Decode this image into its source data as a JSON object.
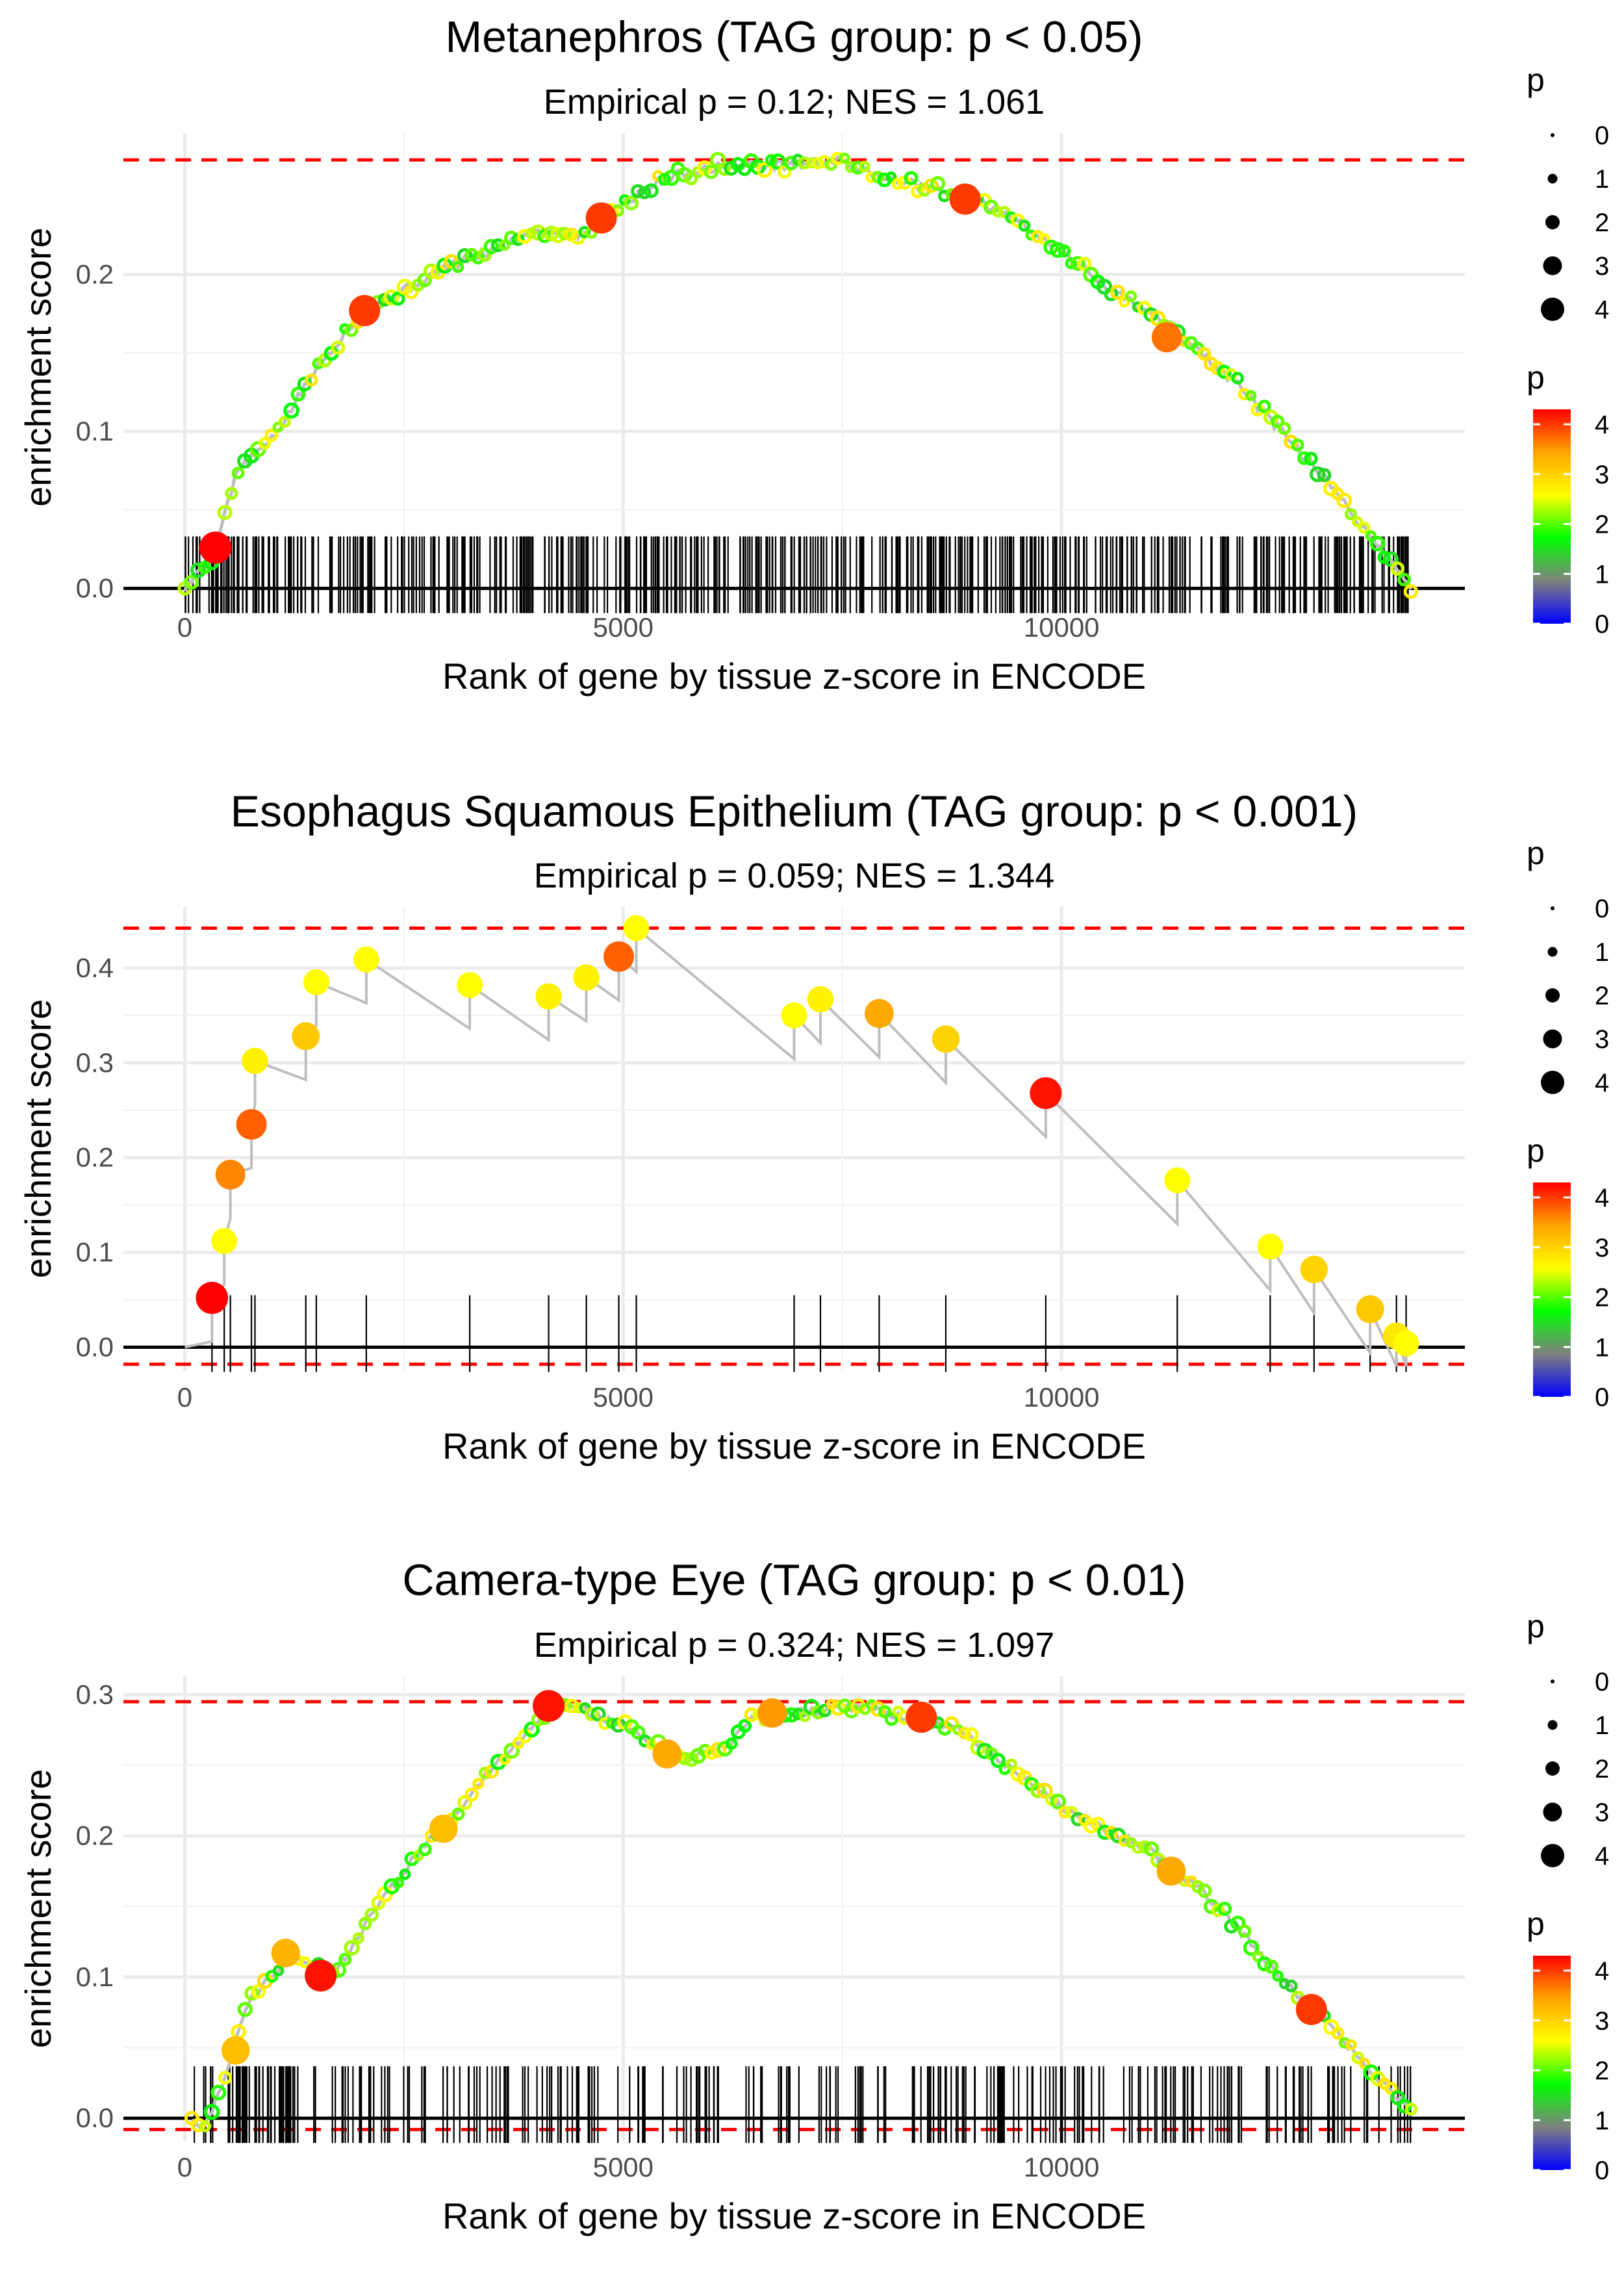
{
  "colors": {
    "gradient": [
      "#0000FF",
      "#808080",
      "#00FF00",
      "#FFFF00",
      "#FFA500",
      "#FF0000"
    ],
    "threshold_line": "#FF0000",
    "grid": "#EBEBEB",
    "axis": "#000000",
    "path_line": "#BEBEBE"
  },
  "legend": {
    "size_title": "p",
    "size_levels": [
      "0",
      "1",
      "2",
      "3",
      "4"
    ],
    "color_title": "p",
    "color_ticks": [
      "0",
      "1",
      "2",
      "3",
      "4"
    ],
    "color_range": [
      0,
      4.3
    ]
  },
  "chart_data": [
    {
      "type": "line",
      "title": "Metanephros (TAG group: p < 0.05)",
      "subtitle": "Empirical p = 0.12; NES = 1.061",
      "xlabel": "Rank of gene by tissue z-score in ENCODE",
      "ylabel": "enrichment score",
      "xlim": [
        -700,
        14600
      ],
      "ylim": [
        -0.008,
        0.29
      ],
      "xticks": [
        0,
        5000,
        10000
      ],
      "xtick_labels": [
        "0",
        "5000",
        "10000"
      ],
      "yticks": [
        0,
        0.1,
        0.2
      ],
      "ytick_labels": [
        "0.0",
        "0.1",
        "0.2"
      ],
      "max_es": 0.273,
      "min_es": 0,
      "rug_hits": 520,
      "rug_seed": 11,
      "rug_range": [
        0,
        14000
      ],
      "curve": [
        [
          0,
          0
        ],
        [
          300,
          0.02
        ],
        [
          600,
          0.075
        ],
        [
          1000,
          0.095
        ],
        [
          1500,
          0.14
        ],
        [
          2000,
          0.175
        ],
        [
          2500,
          0.19
        ],
        [
          3000,
          0.205
        ],
        [
          3500,
          0.215
        ],
        [
          4000,
          0.228
        ],
        [
          4500,
          0.225
        ],
        [
          5000,
          0.245
        ],
        [
          5500,
          0.262
        ],
        [
          6000,
          0.268
        ],
        [
          6500,
          0.27
        ],
        [
          7000,
          0.27
        ],
        [
          7400,
          0.273
        ],
        [
          8000,
          0.262
        ],
        [
          8500,
          0.255
        ],
        [
          9000,
          0.248
        ],
        [
          9500,
          0.235
        ],
        [
          10000,
          0.215
        ],
        [
          10500,
          0.193
        ],
        [
          11000,
          0.175
        ],
        [
          11500,
          0.155
        ],
        [
          12000,
          0.13
        ],
        [
          12500,
          0.1
        ],
        [
          13000,
          0.07
        ],
        [
          13500,
          0.035
        ],
        [
          14000,
          0
        ]
      ],
      "highlight_points": [
        {
          "x": 350,
          "y": 0.026,
          "p": 4.3
        },
        {
          "x": 2050,
          "y": 0.177,
          "p": 4.0
        },
        {
          "x": 4750,
          "y": 0.236,
          "p": 4.0
        },
        {
          "x": 8900,
          "y": 0.248,
          "p": 4.0
        },
        {
          "x": 11200,
          "y": 0.16,
          "p": 3.7
        }
      ],
      "dense_points": true
    },
    {
      "type": "line",
      "title": "Esophagus Squamous Epithelium (TAG group: p < 0.001)",
      "subtitle": "Empirical p = 0.059; NES = 1.344",
      "xlabel": "Rank of gene by tissue z-score in ENCODE",
      "ylabel": "enrichment score",
      "xlim": [
        -700,
        14600
      ],
      "ylim": [
        -0.025,
        0.465
      ],
      "xticks": [
        0,
        5000,
        10000
      ],
      "xtick_labels": [
        "0",
        "5000",
        "10000"
      ],
      "yticks": [
        0,
        0.1,
        0.2,
        0.3,
        0.4
      ],
      "ytick_labels": [
        "0.0",
        "0.1",
        "0.2",
        "0.3",
        "0.4"
      ],
      "max_es": 0.442,
      "min_es": -0.018,
      "rug_positions": [
        310,
        450,
        520,
        760,
        800,
        1380,
        1500,
        2070,
        3250,
        4150,
        4580,
        4950,
        5150,
        6950,
        7250,
        7920,
        8680,
        9820,
        11320,
        12380,
        12880,
        13520,
        13820,
        13930
      ],
      "steps": [
        {
          "x": 310,
          "top": 0.052,
          "p": 4.3
        },
        {
          "x": 450,
          "top": 0.112,
          "p": 2.6
        },
        {
          "x": 520,
          "top": 0.182,
          "p": 3.6
        },
        {
          "x": 760,
          "top": 0.235,
          "p": 3.8
        },
        {
          "x": 800,
          "top": 0.302,
          "p": 2.7
        },
        {
          "x": 1380,
          "top": 0.328,
          "p": 3.1
        },
        {
          "x": 1500,
          "top": 0.385,
          "p": 2.6
        },
        {
          "x": 2070,
          "top": 0.409,
          "p": 2.6
        },
        {
          "x": 3250,
          "top": 0.382,
          "p": 2.6
        },
        {
          "x": 4150,
          "top": 0.37,
          "p": 2.7
        },
        {
          "x": 4580,
          "top": 0.39,
          "p": 2.7
        },
        {
          "x": 4950,
          "top": 0.412,
          "p": 3.8
        },
        {
          "x": 5150,
          "top": 0.442,
          "p": 2.6
        },
        {
          "x": 6950,
          "top": 0.35,
          "p": 2.6
        },
        {
          "x": 7250,
          "top": 0.367,
          "p": 2.7
        },
        {
          "x": 7920,
          "top": 0.352,
          "p": 3.4
        },
        {
          "x": 8680,
          "top": 0.325,
          "p": 3.0
        },
        {
          "x": 9820,
          "top": 0.268,
          "p": 4.2
        },
        {
          "x": 11320,
          "top": 0.176,
          "p": 2.6
        },
        {
          "x": 12380,
          "top": 0.106,
          "p": 2.6
        },
        {
          "x": 12880,
          "top": 0.082,
          "p": 3.0
        },
        {
          "x": 13520,
          "top": 0.04,
          "p": 3.1
        },
        {
          "x": 13820,
          "top": 0.012,
          "p": 2.8
        },
        {
          "x": 13930,
          "top": 0.004,
          "p": 2.6
        }
      ]
    },
    {
      "type": "line",
      "title": "Camera-type Eye (TAG group: p < 0.01)",
      "subtitle": "Empirical p = 0.324; NES = 1.097",
      "xlabel": "Rank of gene by tissue z-score in ENCODE",
      "ylabel": "enrichment score",
      "xlim": [
        -700,
        14600
      ],
      "ylim": [
        -0.016,
        0.313
      ],
      "xticks": [
        0,
        5000,
        10000
      ],
      "xtick_labels": [
        "0",
        "5000",
        "10000"
      ],
      "yticks": [
        0,
        0.1,
        0.2,
        0.3
      ],
      "ytick_labels": [
        "0.0",
        "0.1",
        "0.2",
        "0.3"
      ],
      "max_es": 0.295,
      "min_es": -0.008,
      "rug_hits": 300,
      "rug_seed": 23,
      "rug_range": [
        100,
        14000
      ],
      "curve": [
        [
          80,
          0
        ],
        [
          200,
          -0.005
        ],
        [
          350,
          0.01
        ],
        [
          500,
          0.04
        ],
        [
          700,
          0.08
        ],
        [
          900,
          0.095
        ],
        [
          1100,
          0.108
        ],
        [
          1250,
          0.117
        ],
        [
          1450,
          0.11
        ],
        [
          1650,
          0.1
        ],
        [
          1900,
          0.12
        ],
        [
          2200,
          0.15
        ],
        [
          2500,
          0.175
        ],
        [
          2800,
          0.2
        ],
        [
          3100,
          0.215
        ],
        [
          3400,
          0.24
        ],
        [
          3700,
          0.26
        ],
        [
          4000,
          0.28
        ],
        [
          4250,
          0.295
        ],
        [
          4600,
          0.288
        ],
        [
          5000,
          0.278
        ],
        [
          5300,
          0.265
        ],
        [
          5600,
          0.255
        ],
        [
          5900,
          0.26
        ],
        [
          6200,
          0.265
        ],
        [
          6500,
          0.285
        ],
        [
          7000,
          0.287
        ],
        [
          7500,
          0.29
        ],
        [
          7800,
          0.292
        ],
        [
          8200,
          0.283
        ],
        [
          8500,
          0.28
        ],
        [
          8800,
          0.278
        ],
        [
          9100,
          0.262
        ],
        [
          9500,
          0.245
        ],
        [
          10000,
          0.22
        ],
        [
          10500,
          0.205
        ],
        [
          11000,
          0.19
        ],
        [
          11300,
          0.175
        ],
        [
          11600,
          0.162
        ],
        [
          12000,
          0.135
        ],
        [
          12500,
          0.1
        ],
        [
          13000,
          0.07
        ],
        [
          13500,
          0.035
        ],
        [
          14000,
          0.005
        ]
      ],
      "highlight_points": [
        {
          "x": 4150,
          "y": 0.292,
          "p": 4.2
        },
        {
          "x": 1550,
          "y": 0.101,
          "p": 4.2
        },
        {
          "x": 1150,
          "y": 0.117,
          "p": 3.3
        },
        {
          "x": 8400,
          "y": 0.284,
          "p": 4.0
        },
        {
          "x": 12850,
          "y": 0.077,
          "p": 4.0
        },
        {
          "x": 5500,
          "y": 0.258,
          "p": 3.4
        },
        {
          "x": 2950,
          "y": 0.205,
          "p": 3.2
        },
        {
          "x": 11250,
          "y": 0.175,
          "p": 3.4
        },
        {
          "x": 6700,
          "y": 0.287,
          "p": 3.5
        },
        {
          "x": 580,
          "y": 0.048,
          "p": 3.2
        }
      ],
      "dense_points": true
    }
  ]
}
